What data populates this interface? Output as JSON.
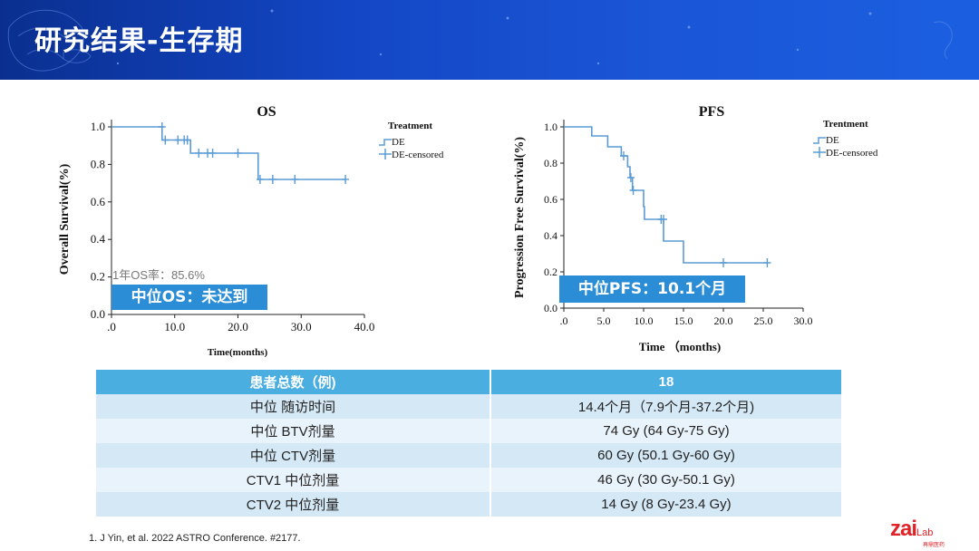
{
  "header": {
    "title": "研究结果-生存期"
  },
  "os_chart_text": {
    "title": "OS",
    "ylabel": "Overall Survival(%)",
    "xlabel": "Time(months)",
    "legend_title": "Treatment",
    "legend_de": "DE",
    "legend_censored": "DE-censored",
    "rate_label": "1年OS率：85.6%",
    "badge": "中位OS：未达到",
    "yticks": [
      "1.0",
      "0.8",
      "0.6",
      "0.4",
      "0.2",
      "0.0"
    ],
    "xticks": [
      ".0",
      "10.0",
      "20.0",
      "30.0",
      "40.0"
    ]
  },
  "pfs_chart_text": {
    "title": "PFS",
    "ylabel": "Progression Free Survival(%)",
    "xlabel": "Time （months)",
    "legend_title": "Trentment",
    "legend_de": "DE",
    "legend_censored": "DE-censored",
    "badge": "中位PFS：10.1个月",
    "yticks": [
      "1.0",
      "0.8",
      "0.6",
      "0.4",
      "0.2",
      "0.0"
    ],
    "xticks": [
      ".0",
      "5.0",
      "10.0",
      "15.0",
      "20.0",
      "25.0",
      "30.0"
    ]
  },
  "chart_data": [
    {
      "type": "line",
      "title": "OS",
      "xlabel": "Time(months)",
      "ylabel": "Overall Survival(%)",
      "xlim": [
        0,
        40
      ],
      "ylim": [
        0,
        1
      ],
      "series": [
        {
          "name": "DE",
          "x": [
            0,
            8,
            8,
            12.5,
            12.5,
            23.2,
            23.2,
            37
          ],
          "y": [
            1.0,
            1.0,
            0.93,
            0.93,
            0.86,
            0.86,
            0.72,
            0.72
          ]
        },
        {
          "name": "DE-censored",
          "x": [
            8,
            8.5,
            10.5,
            11.5,
            12,
            13.8,
            15.2,
            16,
            20,
            23.5,
            25.5,
            29,
            37
          ],
          "y": [
            1.0,
            0.93,
            0.93,
            0.93,
            0.93,
            0.86,
            0.86,
            0.86,
            0.86,
            0.72,
            0.72,
            0.72,
            0.72
          ]
        }
      ]
    },
    {
      "type": "line",
      "title": "PFS",
      "xlabel": "Time （months)",
      "ylabel": "Progression Free Survival(%)",
      "xlim": [
        0,
        30
      ],
      "ylim": [
        0,
        1
      ],
      "series": [
        {
          "name": "DE",
          "x": [
            0,
            3.5,
            3.5,
            5.5,
            5.5,
            7.2,
            7.2,
            8,
            8,
            8.3,
            8.3,
            8.6,
            8.6,
            10,
            10,
            10.1,
            10.1,
            12.5,
            12.5,
            15,
            15,
            25.5
          ],
          "y": [
            1.0,
            1.0,
            0.95,
            0.95,
            0.89,
            0.89,
            0.84,
            0.84,
            0.78,
            0.78,
            0.72,
            0.72,
            0.65,
            0.65,
            0.56,
            0.56,
            0.49,
            0.49,
            0.37,
            0.37,
            0.25,
            0.25
          ]
        },
        {
          "name": "DE-censored",
          "x": [
            7.5,
            8.4,
            8.7,
            12.2,
            12.5,
            20,
            25.5
          ],
          "y": [
            0.84,
            0.72,
            0.65,
            0.49,
            0.49,
            0.25,
            0.25
          ]
        }
      ]
    }
  ],
  "table": {
    "header": [
      "患者总数（例)",
      "18"
    ],
    "rows": [
      [
        "中位 随访时间",
        "14.4个月（7.9个月-37.2个月)"
      ],
      [
        "中位 BTV剂量",
        "74 Gy (64 Gy-75 Gy)"
      ],
      [
        "中位 CTV剂量",
        "60 Gy (50.1 Gy-60 Gy)"
      ],
      [
        "CTV1 中位剂量",
        "46 Gy (30 Gy-50.1 Gy)"
      ],
      [
        "CTV2 中位剂量",
        "14 Gy (8 Gy-23.4 Gy)"
      ]
    ]
  },
  "footer": {
    "reference": "1.   J Yin, et al. 2022 ASTRO Conference. #2177.",
    "logo_main": "zai",
    "logo_suffix": "Lab",
    "logo_sub": "再鼎医药"
  },
  "colors": {
    "line": "#5b9bd5",
    "badge": "#2a8dd6",
    "table_header": "#4aaee0",
    "header_bg": "#1346c4",
    "logo": "#e12228"
  }
}
